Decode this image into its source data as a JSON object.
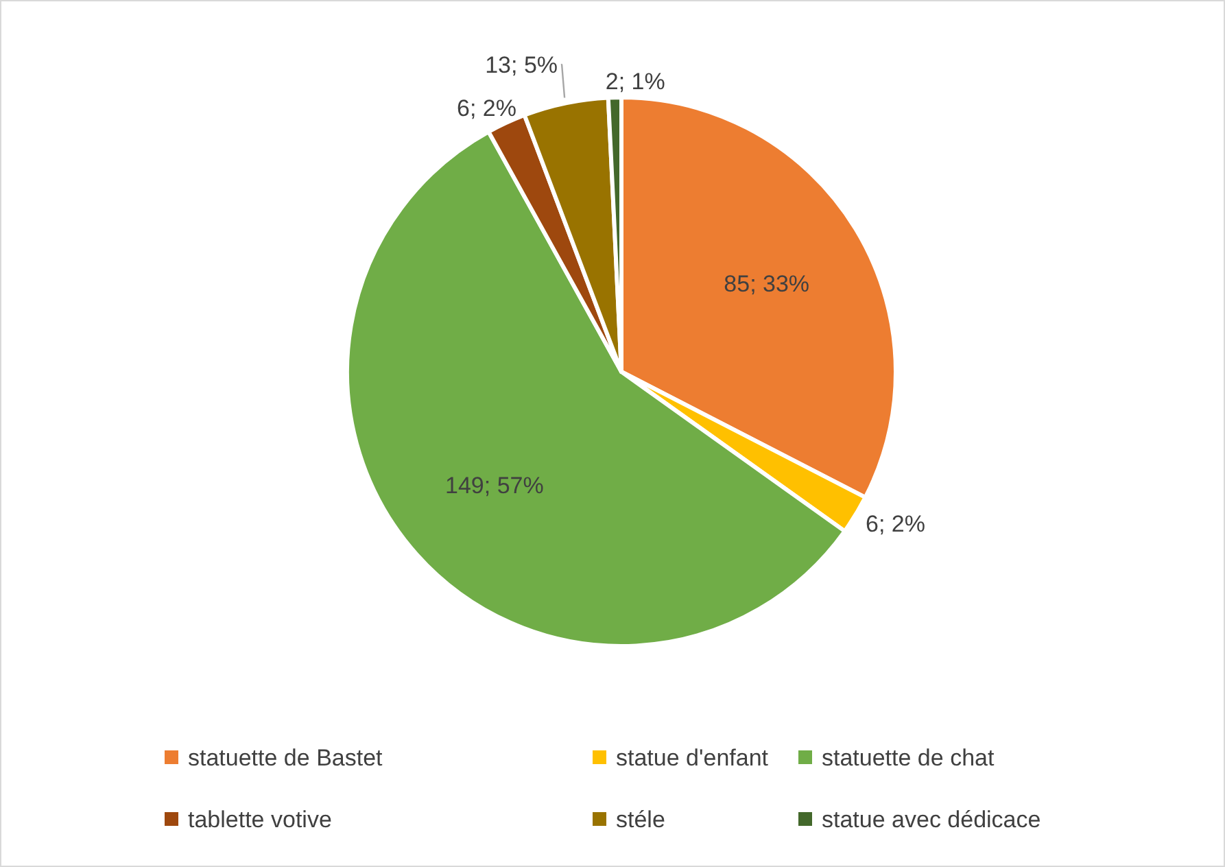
{
  "chart_data": {
    "type": "pie",
    "categories": [
      "statuette de Bastet",
      "statue d'enfant",
      "statuette de chat",
      "tablette votive",
      "stéle",
      "statue avec dédicace"
    ],
    "values": [
      85,
      6,
      149,
      6,
      13,
      2
    ],
    "colors": [
      "#ed7d31",
      "#ffc000",
      "#70ad47",
      "#9e480e",
      "#997300",
      "#43682b"
    ],
    "value_labels": [
      "85; 33%",
      "6; 2%",
      "149; 57%",
      "6; 2%",
      "13; 5%",
      "2; 1%"
    ],
    "legend": "bottom"
  }
}
